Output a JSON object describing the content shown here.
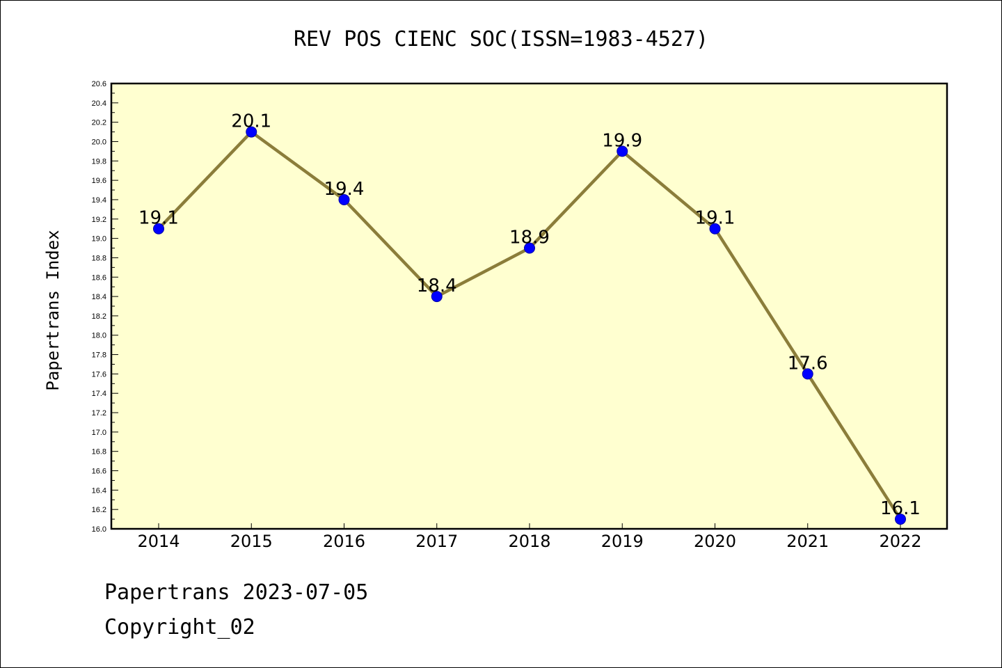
{
  "chart_data": {
    "type": "line",
    "title": "REV POS CIENC SOC(ISSN=1983-4527)",
    "ylabel": "Papertrans Index",
    "xlabel": "",
    "categories": [
      "2014",
      "2015",
      "2016",
      "2017",
      "2018",
      "2019",
      "2020",
      "2021",
      "2022"
    ],
    "values": [
      19.1,
      20.1,
      19.4,
      18.4,
      18.9,
      19.9,
      19.1,
      17.6,
      16.1
    ],
    "data_labels": [
      "19.1",
      "20.1",
      "19.4",
      "18.4",
      "18.9",
      "19.9",
      "19.1",
      "17.6",
      "16.1"
    ],
    "ylim": [
      16.0,
      20.6
    ],
    "ytick_labels": [
      "16.0",
      "16.2",
      "16.4",
      "16.6",
      "16.8",
      "17.0",
      "17.2",
      "17.4",
      "17.6",
      "17.8",
      "18.0",
      "18.2",
      "18.4",
      "18.6",
      "18.8",
      "19.0",
      "19.2",
      "19.4",
      "19.6",
      "19.8",
      "20.0",
      "20.2",
      "20.4",
      "20.6"
    ],
    "grid": false,
    "colors": {
      "plot_background": "#ffffd0",
      "line": "#8b7d3a",
      "marker": "#0000ff"
    }
  },
  "footer": {
    "line1": "Papertrans 2023-07-05",
    "line2": "Copyright_02"
  }
}
